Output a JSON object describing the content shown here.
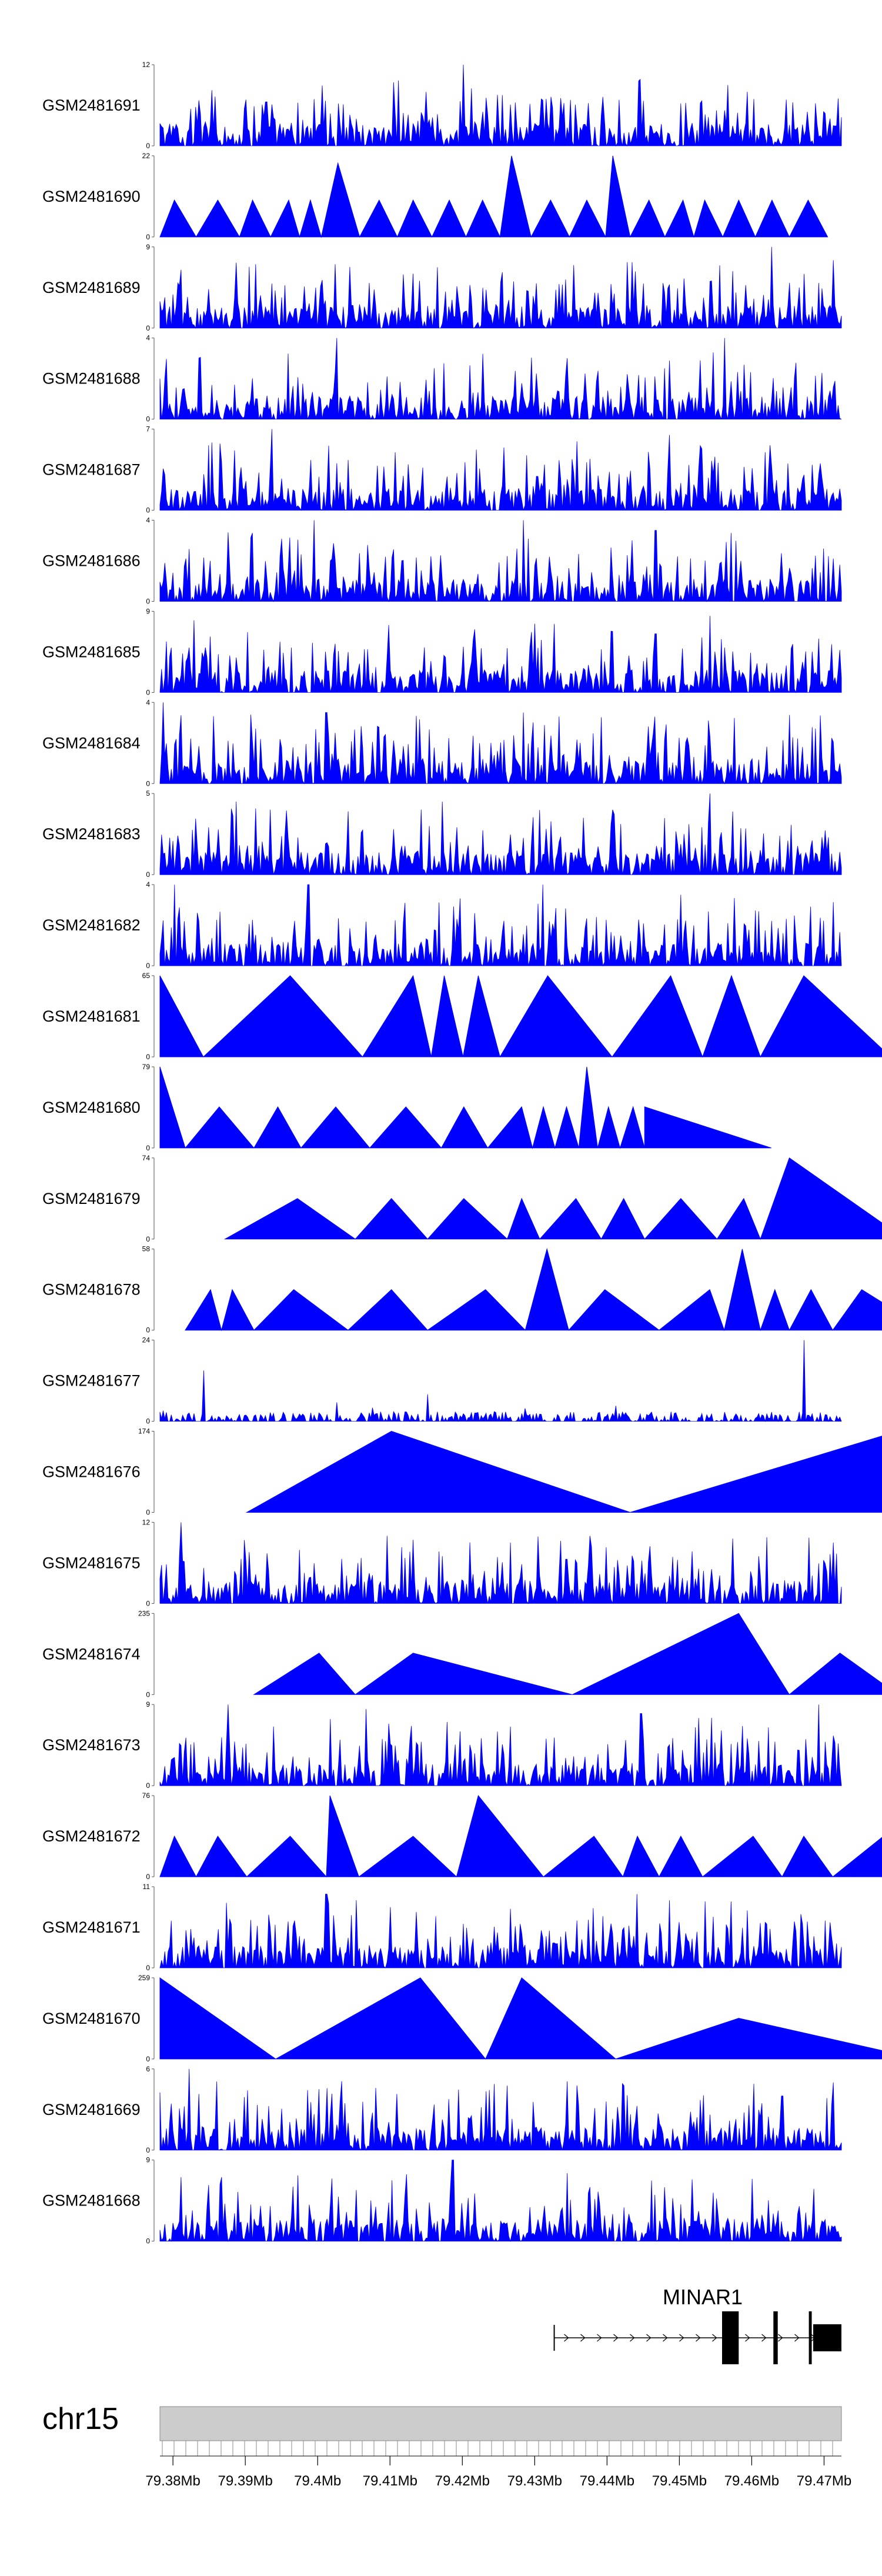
{
  "chart_data": {
    "type": "area",
    "title": "",
    "tracks": [
      {
        "name": "GSM2481691",
        "ymax": "12",
        "pattern": "dense",
        "peaks": [
          [
            79.4202,
            12
          ],
          [
            79.4212,
            8.5
          ],
          [
            79.4567,
            9
          ],
          [
            79.4053,
            4
          ],
          [
            79.394,
            3
          ]
        ]
      },
      {
        "name": "GSM2481690",
        "ymax": "22",
        "pattern": "tri",
        "points": [
          [
            79.3782,
            0
          ],
          [
            79.3802,
            10
          ],
          [
            79.3832,
            0
          ],
          [
            79.3862,
            10
          ],
          [
            79.3892,
            0
          ],
          [
            79.391,
            10
          ],
          [
            79.3935,
            0
          ],
          [
            79.396,
            10
          ],
          [
            79.3975,
            0
          ],
          [
            79.399,
            10
          ],
          [
            79.4005,
            0
          ],
          [
            79.4028,
            20
          ],
          [
            79.4058,
            0
          ],
          [
            79.4085,
            10
          ],
          [
            79.411,
            0
          ],
          [
            79.4132,
            10
          ],
          [
            79.4158,
            0
          ],
          [
            79.4182,
            10
          ],
          [
            79.4205,
            0
          ],
          [
            79.4228,
            10
          ],
          [
            79.4252,
            0
          ],
          [
            79.4268,
            22
          ],
          [
            79.4295,
            0
          ],
          [
            79.4322,
            10
          ],
          [
            79.4348,
            0
          ],
          [
            79.4372,
            10
          ],
          [
            79.4398,
            0
          ],
          [
            79.4408,
            22
          ],
          [
            79.4432,
            0
          ],
          [
            79.4458,
            10
          ],
          [
            79.448,
            0
          ],
          [
            79.4505,
            10
          ],
          [
            79.452,
            0
          ],
          [
            79.4535,
            10
          ],
          [
            79.456,
            0
          ],
          [
            79.4582,
            10
          ],
          [
            79.4605,
            0
          ],
          [
            79.4628,
            10
          ],
          [
            79.4652,
            0
          ],
          [
            79.4678,
            10
          ],
          [
            79.4705,
            0
          ]
        ]
      },
      {
        "name": "GSM2481689",
        "ymax": "9",
        "pattern": "dense",
        "peaks": [
          [
            79.4627,
            9
          ],
          [
            79.4072,
            5
          ],
          [
            79.4507,
            5.5
          ],
          [
            79.3807,
            5
          ]
        ]
      },
      {
        "name": "GSM2481688",
        "ymax": "4",
        "pattern": "dense",
        "peaks": [
          [
            79.4027,
            4
          ],
          [
            79.4562,
            4
          ]
        ]
      },
      {
        "name": "GSM2481687",
        "ymax": "7",
        "pattern": "dense",
        "peaks": [
          [
            79.3937,
            7
          ],
          [
            79.4487,
            6.5
          ],
          [
            79.4107,
            5
          ]
        ]
      },
      {
        "name": "GSM2481686",
        "ymax": "4",
        "pattern": "dense",
        "peaks": [
          [
            79.3995,
            4
          ],
          [
            79.4285,
            4
          ],
          [
            79.4467,
            3.5
          ]
        ]
      },
      {
        "name": "GSM2481685",
        "ymax": "9",
        "pattern": "dense",
        "peaks": [
          [
            79.3829,
            8
          ],
          [
            79.4542,
            8.5
          ],
          [
            79.4217,
            7
          ],
          [
            79.4467,
            6.5
          ]
        ]
      },
      {
        "name": "GSM2481684",
        "ymax": "4",
        "pattern": "dense",
        "peaks": [
          [
            79.3787,
            4
          ],
          [
            79.4012,
            3.5
          ],
          [
            79.4285,
            3.5
          ]
        ]
      },
      {
        "name": "GSM2481683",
        "ymax": "5",
        "pattern": "dense",
        "peaks": [
          [
            79.3887,
            4.5
          ],
          [
            79.4172,
            4.5
          ],
          [
            79.4542,
            5
          ],
          [
            79.4407,
            4
          ]
        ]
      },
      {
        "name": "GSM2481682",
        "ymax": "4",
        "pattern": "dense",
        "peaks": [
          [
            79.3802,
            4
          ],
          [
            79.3987,
            4
          ],
          [
            79.4312,
            4
          ],
          [
            79.4502,
            3.5
          ]
        ]
      },
      {
        "name": "GSM2481681",
        "ymax": "65",
        "pattern": "tri",
        "points": [
          [
            79.3782,
            0
          ],
          [
            79.3782,
            65
          ],
          [
            79.3842,
            0
          ],
          [
            79.3962,
            65
          ],
          [
            79.4062,
            0
          ],
          [
            79.4132,
            65
          ],
          [
            79.4157,
            0
          ],
          [
            79.4175,
            65
          ],
          [
            79.4201,
            0
          ],
          [
            79.4222,
            65
          ],
          [
            79.4252,
            0
          ],
          [
            79.4318,
            65
          ],
          [
            79.4407,
            0
          ],
          [
            79.4488,
            65
          ],
          [
            79.4532,
            0
          ],
          [
            79.4572,
            65
          ],
          [
            79.4612,
            0
          ],
          [
            79.4672,
            65
          ],
          [
            79.4792,
            0
          ]
        ]
      },
      {
        "name": "GSM2481680",
        "ymax": "79",
        "pattern": "tri",
        "points": [
          [
            79.3782,
            0
          ],
          [
            79.3782,
            79
          ],
          [
            79.3817,
            0
          ],
          [
            79.3864,
            40
          ],
          [
            79.3912,
            0
          ],
          [
            79.3945,
            40
          ],
          [
            79.3977,
            0
          ],
          [
            79.4025,
            40
          ],
          [
            79.4072,
            0
          ],
          [
            79.4122,
            40
          ],
          [
            79.4171,
            0
          ],
          [
            79.4202,
            40
          ],
          [
            79.4235,
            0
          ],
          [
            79.4282,
            40
          ],
          [
            79.4297,
            0
          ],
          [
            79.4312,
            40
          ],
          [
            79.4328,
            0
          ],
          [
            79.4344,
            40
          ],
          [
            79.4361,
            0
          ],
          [
            79.4372,
            79
          ],
          [
            79.4387,
            0
          ],
          [
            79.4402,
            40
          ],
          [
            79.4418,
            0
          ],
          [
            79.4436,
            40
          ],
          [
            79.4452,
            0
          ],
          [
            79.4452,
            40
          ],
          [
            79.4627,
            0
          ]
        ]
      },
      {
        "name": "GSM2481679",
        "ymax": "74",
        "pattern": "tri",
        "points": [
          [
            79.3872,
            0
          ],
          [
            79.3972,
            37
          ],
          [
            79.4052,
            0
          ],
          [
            79.4102,
            37
          ],
          [
            79.4152,
            0
          ],
          [
            79.4202,
            37
          ],
          [
            79.4262,
            0
          ],
          [
            79.4282,
            37
          ],
          [
            79.4307,
            0
          ],
          [
            79.4357,
            37
          ],
          [
            79.4392,
            0
          ],
          [
            79.4423,
            37
          ],
          [
            79.4452,
            0
          ],
          [
            79.4502,
            37
          ],
          [
            79.4552,
            0
          ],
          [
            79.4589,
            37
          ],
          [
            79.4612,
            0
          ],
          [
            79.4652,
            74
          ],
          [
            79.4812,
            0
          ]
        ]
      },
      {
        "name": "GSM2481678",
        "ymax": "58",
        "pattern": "tri",
        "points": [
          [
            79.3817,
            0
          ],
          [
            79.3852,
            29
          ],
          [
            79.3867,
            0
          ],
          [
            79.3882,
            29
          ],
          [
            79.3912,
            0
          ],
          [
            79.3967,
            29
          ],
          [
            79.4042,
            0
          ],
          [
            79.4102,
            29
          ],
          [
            79.4152,
            0
          ],
          [
            79.4232,
            29
          ],
          [
            79.4287,
            0
          ],
          [
            79.4317,
            58
          ],
          [
            79.4347,
            0
          ],
          [
            79.4397,
            29
          ],
          [
            79.4472,
            0
          ],
          [
            79.4542,
            29
          ],
          [
            79.4562,
            0
          ],
          [
            79.4587,
            58
          ],
          [
            79.4612,
            0
          ],
          [
            79.4632,
            29
          ],
          [
            79.4652,
            0
          ],
          [
            79.4682,
            29
          ],
          [
            79.4712,
            0
          ],
          [
            79.4752,
            29
          ],
          [
            79.4842,
            0
          ]
        ]
      },
      {
        "name": "GSM2481677",
        "ymax": "24",
        "pattern": "sparse",
        "peaks": [
          [
            79.4672,
            24
          ],
          [
            79.3842,
            15
          ],
          [
            79.4152,
            8
          ]
        ]
      },
      {
        "name": "GSM2481676",
        "ymax": "174",
        "pattern": "tri",
        "points": [
          [
            79.3902,
            0
          ],
          [
            79.4102,
            174
          ],
          [
            79.4432,
            0
          ],
          [
            79.4802,
            174
          ],
          [
            79.4822,
            0
          ],
          [
            79.4852,
            174
          ]
        ]
      },
      {
        "name": "GSM2481675",
        "ymax": "12",
        "pattern": "dense",
        "peaks": [
          [
            79.3812,
            12
          ],
          [
            79.4377,
            10
          ],
          [
            79.4267,
            9
          ],
          [
            79.4712,
            9
          ],
          [
            79.4172,
            7
          ]
        ]
      },
      {
        "name": "GSM2481674",
        "ymax": "235",
        "pattern": "tri",
        "points": [
          [
            79.3912,
            0
          ],
          [
            79.4002,
            120
          ],
          [
            79.4052,
            0
          ],
          [
            79.4132,
            120
          ],
          [
            79.4352,
            0
          ],
          [
            79.4582,
            235
          ],
          [
            79.4652,
            0
          ],
          [
            79.4722,
            120
          ],
          [
            79.4802,
            0
          ],
          [
            79.4882,
            120
          ],
          [
            79.4982,
            0
          ],
          [
            79.5052,
            235
          ]
        ]
      },
      {
        "name": "GSM2481673",
        "ymax": "9",
        "pattern": "dense",
        "peaks": [
          [
            79.3877,
            9
          ],
          [
            79.4067,
            8.5
          ],
          [
            79.4447,
            8
          ],
          [
            79.4692,
            9
          ]
        ]
      },
      {
        "name": "GSM2481672",
        "ymax": "76",
        "pattern": "tri",
        "points": [
          [
            79.3782,
            0
          ],
          [
            79.3802,
            38
          ],
          [
            79.3832,
            0
          ],
          [
            79.3862,
            38
          ],
          [
            79.3902,
            0
          ],
          [
            79.3962,
            38
          ],
          [
            79.4012,
            0
          ],
          [
            79.4017,
            76
          ],
          [
            79.4057,
            0
          ],
          [
            79.4132,
            38
          ],
          [
            79.4192,
            0
          ],
          [
            79.4222,
            76
          ],
          [
            79.4312,
            0
          ],
          [
            79.4382,
            38
          ],
          [
            79.4422,
            0
          ],
          [
            79.4442,
            38
          ],
          [
            79.4472,
            0
          ],
          [
            79.4502,
            38
          ],
          [
            79.4532,
            0
          ],
          [
            79.4602,
            38
          ],
          [
            79.4642,
            0
          ],
          [
            79.4672,
            38
          ],
          [
            79.4712,
            0
          ],
          [
            79.4782,
            38
          ],
          [
            79.4862,
            0
          ]
        ]
      },
      {
        "name": "GSM2481671",
        "ymax": "11",
        "pattern": "dense",
        "peaks": [
          [
            79.4012,
            10
          ],
          [
            79.4442,
            10
          ],
          [
            79.4267,
            8
          ],
          [
            79.4572,
            9
          ]
        ]
      },
      {
        "name": "GSM2481670",
        "ymax": "259",
        "pattern": "tri",
        "points": [
          [
            79.3782,
            0
          ],
          [
            79.3782,
            259
          ],
          [
            79.3942,
            0
          ],
          [
            79.4142,
            259
          ],
          [
            79.4232,
            0
          ],
          [
            79.4282,
            259
          ],
          [
            79.4412,
            0
          ],
          [
            79.4582,
            130
          ],
          [
            79.4832,
            0
          ]
        ]
      },
      {
        "name": "GSM2481669",
        "ymax": "6",
        "pattern": "dense",
        "peaks": [
          [
            79.3822,
            6
          ],
          [
            79.4002,
            4.5
          ],
          [
            79.4642,
            4
          ],
          [
            79.4712,
            5
          ]
        ]
      },
      {
        "name": "GSM2481668",
        "ymax": "9",
        "pattern": "dense",
        "peaks": [
          [
            79.4187,
            9
          ],
          [
            79.4727,
            8.5
          ],
          [
            79.4377,
            6
          ]
        ]
      }
    ],
    "xaxis": {
      "range": [
        79.3782,
        79.4724
      ],
      "ticks": [
        79.38,
        79.39,
        79.4,
        79.41,
        79.42,
        79.43,
        79.44,
        79.45,
        79.46,
        79.47
      ],
      "tick_labels": [
        "79.38Mb",
        "79.39Mb",
        "79.4Mb",
        "79.41Mb",
        "79.42Mb",
        "79.43Mb",
        "79.44Mb",
        "79.45Mb",
        "79.46Mb",
        "79.47Mb"
      ]
    },
    "chromosome": "chr15",
    "gene": {
      "name": "MINAR1",
      "start": 79.4327,
      "end": 79.4724,
      "exons": [
        [
          79.4559,
          79.4582
        ],
        [
          79.463,
          79.4636
        ],
        [
          79.4679,
          79.4683
        ],
        [
          79.4685,
          79.4724
        ]
      ],
      "strand": "+"
    },
    "colors": {
      "signal": "#0000ff",
      "axis": "#000000",
      "ideogram": "#cccccc",
      "ideogram_border": "#888888",
      "gene": "#000000"
    }
  }
}
